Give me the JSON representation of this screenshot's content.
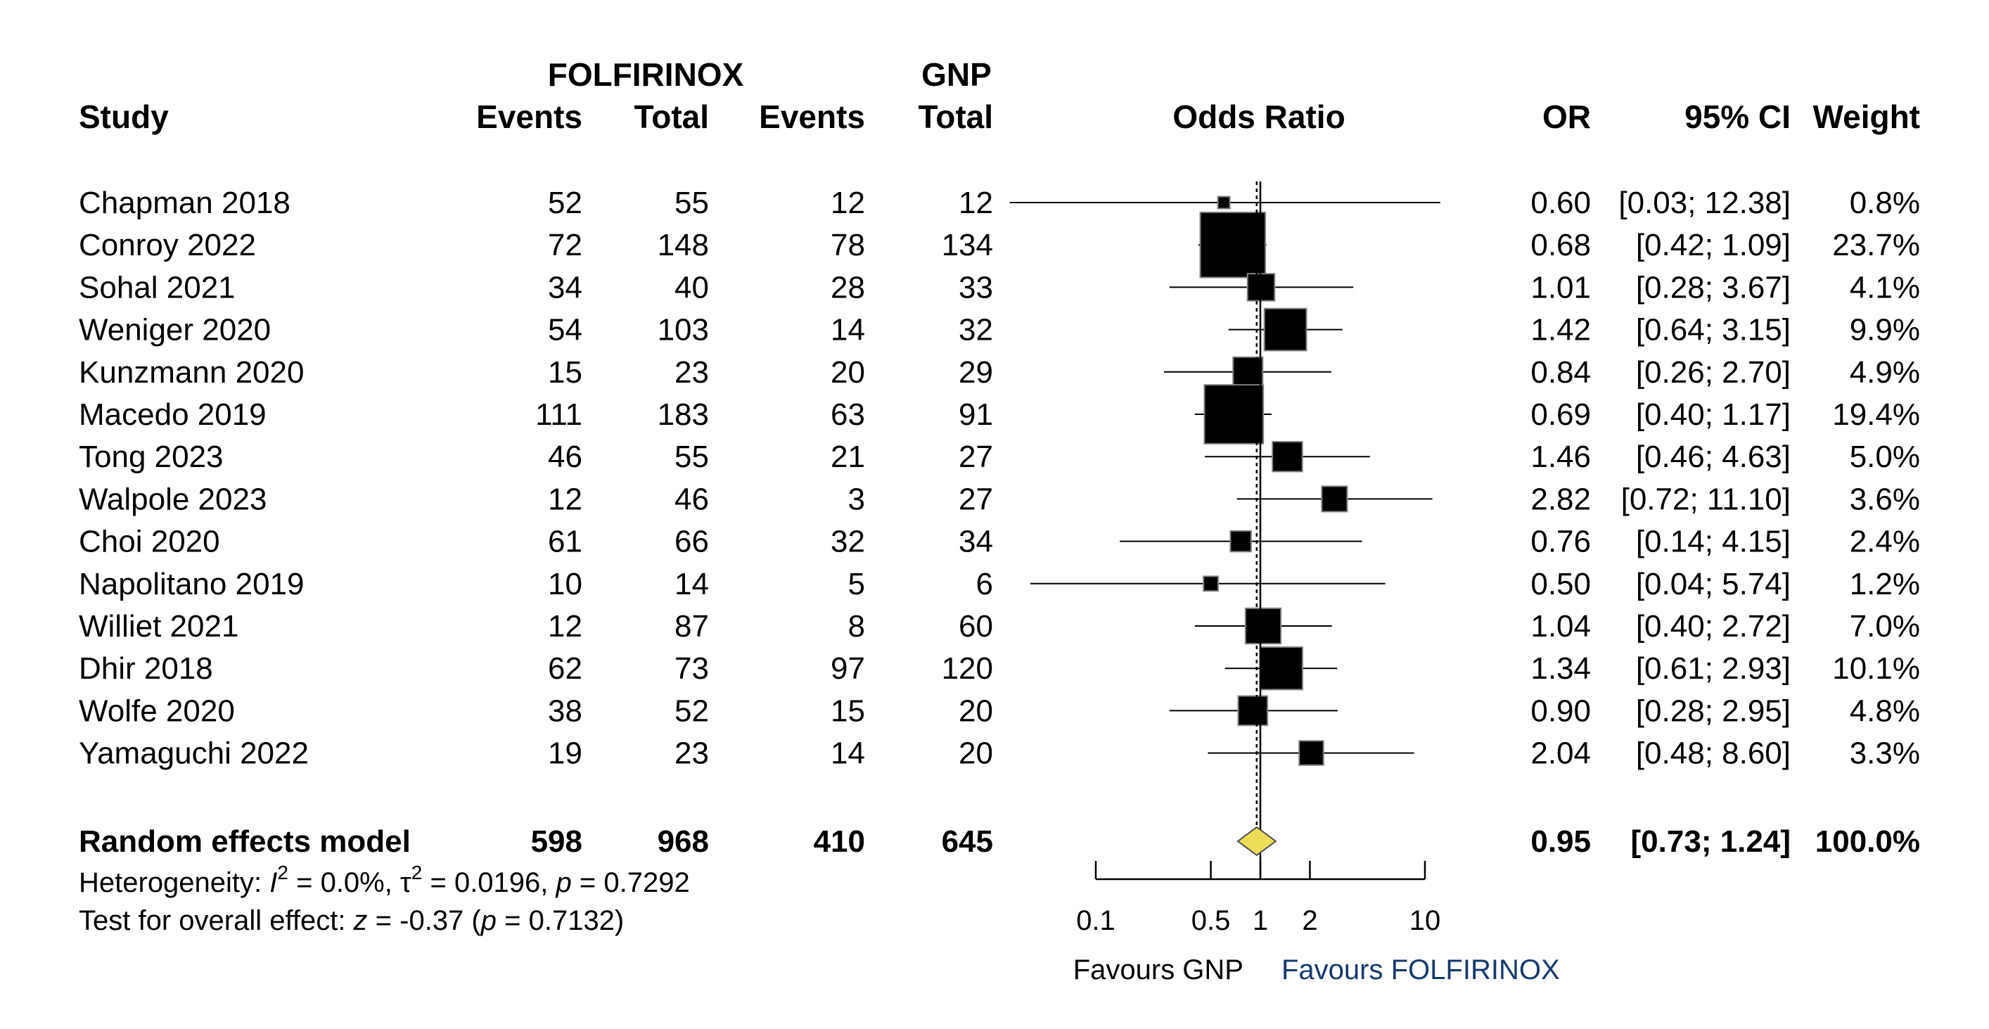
{
  "chart_data": {
    "type": "forest",
    "group_headers": {
      "experimental": "FOLFIRINOX",
      "control": "GNP"
    },
    "columns": {
      "study": "Study",
      "events_exp": "Events",
      "total_exp": "Total",
      "events_ctl": "Events",
      "total_ctl": "Total",
      "plot": "Odds Ratio",
      "or": "OR",
      "ci": "95% CI",
      "weight": "Weight"
    },
    "studies": [
      {
        "study": "Chapman 2018",
        "events_exp": "52",
        "total_exp": "55",
        "events_ctl": "12",
        "total_ctl": "12",
        "or": 0.6,
        "lower": 0.03,
        "upper": 12.38,
        "or_text": "0.60",
        "ci_text": "[0.03; 12.38]",
        "weight": 0.8,
        "weight_text": "0.8%"
      },
      {
        "study": "Conroy 2022",
        "events_exp": "72",
        "total_exp": "148",
        "events_ctl": "78",
        "total_ctl": "134",
        "or": 0.68,
        "lower": 0.42,
        "upper": 1.09,
        "or_text": "0.68",
        "ci_text": "[0.42;  1.09]",
        "weight": 23.7,
        "weight_text": "23.7%"
      },
      {
        "study": "Sohal 2021",
        "events_exp": "34",
        "total_exp": "40",
        "events_ctl": "28",
        "total_ctl": "33",
        "or": 1.01,
        "lower": 0.28,
        "upper": 3.67,
        "or_text": "1.01",
        "ci_text": "[0.28;  3.67]",
        "weight": 4.1,
        "weight_text": "4.1%"
      },
      {
        "study": "Weniger 2020",
        "events_exp": "54",
        "total_exp": "103",
        "events_ctl": "14",
        "total_ctl": "32",
        "or": 1.42,
        "lower": 0.64,
        "upper": 3.15,
        "or_text": "1.42",
        "ci_text": "[0.64;  3.15]",
        "weight": 9.9,
        "weight_text": "9.9%"
      },
      {
        "study": "Kunzmann 2020",
        "events_exp": "15",
        "total_exp": "23",
        "events_ctl": "20",
        "total_ctl": "29",
        "or": 0.84,
        "lower": 0.26,
        "upper": 2.7,
        "or_text": "0.84",
        "ci_text": "[0.26;  2.70]",
        "weight": 4.9,
        "weight_text": "4.9%"
      },
      {
        "study": "Macedo 2019",
        "events_exp": "111",
        "total_exp": "183",
        "events_ctl": "63",
        "total_ctl": "91",
        "or": 0.69,
        "lower": 0.4,
        "upper": 1.17,
        "or_text": "0.69",
        "ci_text": "[0.40;  1.17]",
        "weight": 19.4,
        "weight_text": "19.4%"
      },
      {
        "study": "Tong 2023",
        "events_exp": "46",
        "total_exp": "55",
        "events_ctl": "21",
        "total_ctl": "27",
        "or": 1.46,
        "lower": 0.46,
        "upper": 4.63,
        "or_text": "1.46",
        "ci_text": "[0.46;  4.63]",
        "weight": 5.0,
        "weight_text": "5.0%"
      },
      {
        "study": "Walpole 2023",
        "events_exp": "12",
        "total_exp": "46",
        "events_ctl": "3",
        "total_ctl": "27",
        "or": 2.82,
        "lower": 0.72,
        "upper": 11.1,
        "or_text": "2.82",
        "ci_text": "[0.72; 11.10]",
        "weight": 3.6,
        "weight_text": "3.6%"
      },
      {
        "study": "Choi 2020",
        "events_exp": "61",
        "total_exp": "66",
        "events_ctl": "32",
        "total_ctl": "34",
        "or": 0.76,
        "lower": 0.14,
        "upper": 4.15,
        "or_text": "0.76",
        "ci_text": "[0.14;  4.15]",
        "weight": 2.4,
        "weight_text": "2.4%"
      },
      {
        "study": "Napolitano 2019",
        "events_exp": "10",
        "total_exp": "14",
        "events_ctl": "5",
        "total_ctl": "6",
        "or": 0.5,
        "lower": 0.04,
        "upper": 5.74,
        "or_text": "0.50",
        "ci_text": "[0.04;  5.74]",
        "weight": 1.2,
        "weight_text": "1.2%"
      },
      {
        "study": "Williet 2021",
        "events_exp": "12",
        "total_exp": "87",
        "events_ctl": "8",
        "total_ctl": "60",
        "or": 1.04,
        "lower": 0.4,
        "upper": 2.72,
        "or_text": "1.04",
        "ci_text": "[0.40;  2.72]",
        "weight": 7.0,
        "weight_text": "7.0%"
      },
      {
        "study": "Dhir 2018",
        "events_exp": "62",
        "total_exp": "73",
        "events_ctl": "97",
        "total_ctl": "120",
        "or": 1.34,
        "lower": 0.61,
        "upper": 2.93,
        "or_text": "1.34",
        "ci_text": "[0.61;  2.93]",
        "weight": 10.1,
        "weight_text": "10.1%"
      },
      {
        "study": "Wolfe 2020",
        "events_exp": "38",
        "total_exp": "52",
        "events_ctl": "15",
        "total_ctl": "20",
        "or": 0.9,
        "lower": 0.28,
        "upper": 2.95,
        "or_text": "0.90",
        "ci_text": "[0.28;  2.95]",
        "weight": 4.8,
        "weight_text": "4.8%"
      },
      {
        "study": "Yamaguchi 2022",
        "events_exp": "19",
        "total_exp": "23",
        "events_ctl": "14",
        "total_ctl": "20",
        "or": 2.04,
        "lower": 0.48,
        "upper": 8.6,
        "or_text": "2.04",
        "ci_text": "[0.48;  8.60]",
        "weight": 3.3,
        "weight_text": "3.3%"
      }
    ],
    "pooled": {
      "label": "Random effects model",
      "events_exp": "598",
      "total_exp": "968",
      "events_ctl": "410",
      "total_ctl": "645",
      "or": 0.95,
      "lower": 0.73,
      "upper": 1.24,
      "or_text": "0.95",
      "ci_text": "[0.73;  1.24]",
      "weight_text": "100.0%"
    },
    "heterogeneity": {
      "prefix": "Heterogeneity: ",
      "i2_symbol": "I",
      "i2_value": " = 0.0%, ",
      "tau2_symbol": "τ",
      "tau2_value": " = 0.0196, ",
      "p_symbol": "p",
      "p_value": " = 0.7292"
    },
    "overall_effect": {
      "prefix": "Test for overall effect: ",
      "z_symbol": "z",
      "z_value": " = -0.37 (",
      "p_symbol": "p",
      "p_value": " = 0.7132)"
    },
    "x_axis": {
      "scale": "log",
      "range": [
        0.1,
        10
      ],
      "ticks": [
        0.1,
        0.5,
        1,
        2,
        10
      ],
      "tick_labels": [
        "0.1",
        "0.5",
        "1",
        "2",
        "10"
      ],
      "null_value": 1
    },
    "favours": {
      "left": "Favours GNP",
      "right": "Favours FOLFIRINOX"
    },
    "colors": {
      "box": "#000000",
      "box_border": "#808080",
      "diamond": "#ecdc57",
      "favours_right": "#153a6d"
    }
  }
}
